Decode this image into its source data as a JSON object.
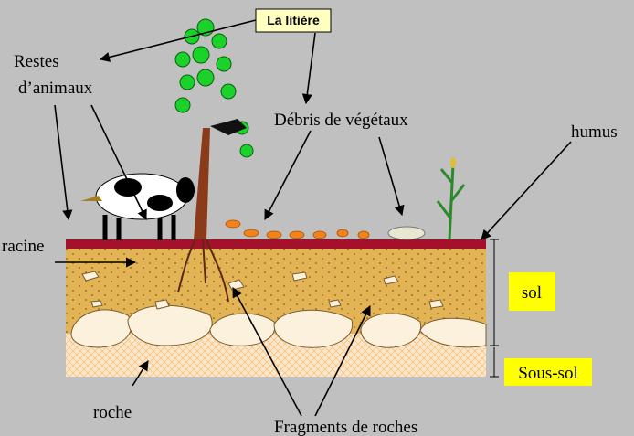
{
  "title_box": "La litière",
  "labels": {
    "restes": [
      "Restes",
      "d’animaux"
    ],
    "debris": "Débris de végétaux",
    "humus": "humus",
    "racine": "racine",
    "sol": "sol",
    "sous_sol": "Sous-sol",
    "roche": "roche",
    "fragments": "Fragments de roches"
  }
}
